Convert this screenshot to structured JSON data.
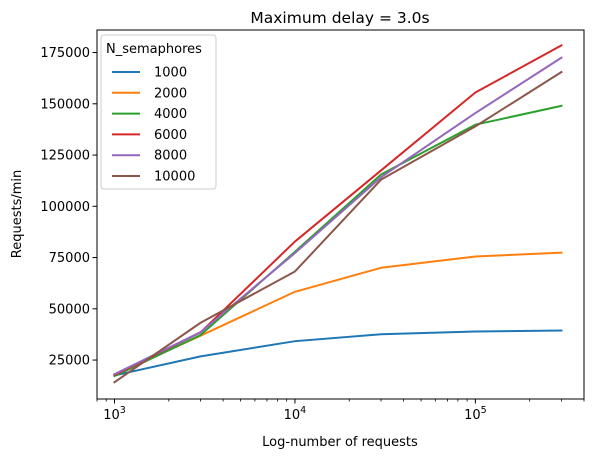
{
  "chart_data": {
    "type": "line",
    "title": "Maximum delay = 3.0s",
    "xlabel": "Log-number of requests",
    "ylabel": "Requests/min",
    "xscale": "log",
    "xlim": [
      800,
      400000
    ],
    "ylim": [
      6000,
      186000
    ],
    "x": [
      1000,
      3000,
      10000,
      30000,
      100000,
      300000
    ],
    "x_ticks": [
      {
        "value": 1000,
        "base": "10",
        "exp": "3"
      },
      {
        "value": 10000,
        "base": "10",
        "exp": "4"
      },
      {
        "value": 100000,
        "base": "10",
        "exp": "5"
      }
    ],
    "y_ticks": [
      {
        "value": 25000,
        "label": "25000"
      },
      {
        "value": 50000,
        "label": "50000"
      },
      {
        "value": 75000,
        "label": "75000"
      },
      {
        "value": 100000,
        "label": "100000"
      },
      {
        "value": 125000,
        "label": "125000"
      },
      {
        "value": 150000,
        "label": "150000"
      },
      {
        "value": 175000,
        "label": "175000"
      }
    ],
    "grid": false,
    "legend": {
      "title": "N_semaphores",
      "placement": "upper-left"
    },
    "series": [
      {
        "name": "1000",
        "color": "#1f77b4",
        "values": [
          17500,
          26800,
          34200,
          37600,
          38900,
          39400
        ]
      },
      {
        "name": "2000",
        "color": "#ff7f0e",
        "values": [
          17800,
          36900,
          58300,
          70000,
          75500,
          77400
        ]
      },
      {
        "name": "4000",
        "color": "#2ca02c",
        "values": [
          17200,
          37200,
          77800,
          115500,
          139800,
          149000
        ]
      },
      {
        "name": "6000",
        "color": "#d62728",
        "values": [
          17700,
          38500,
          82800,
          117500,
          155500,
          178500
        ]
      },
      {
        "name": "8000",
        "color": "#9467bd",
        "values": [
          18100,
          38600,
          77200,
          114200,
          145500,
          172500
        ]
      },
      {
        "name": "10000",
        "color": "#8c564b",
        "values": [
          14200,
          43200,
          68200,
          113000,
          139000,
          165500
        ]
      }
    ]
  }
}
